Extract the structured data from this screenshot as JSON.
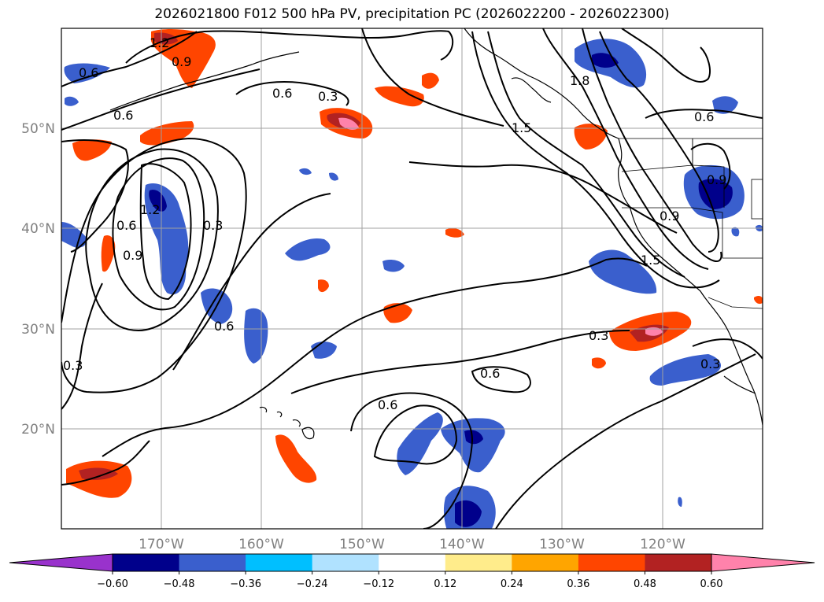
{
  "title": "2026021800 F012 500 hPa PV, precipitation PC (2026022200 - 2026022300)",
  "map": {
    "lon_range": [
      -180,
      -110
    ],
    "lat_range": [
      10,
      60
    ],
    "lon_labels": [
      "170°W",
      "160°W",
      "150°W",
      "140°W",
      "130°W",
      "120°W"
    ],
    "lat_labels": [
      "50°N",
      "40°N",
      "30°N",
      "20°N"
    ],
    "gridlines": true,
    "pv_contour_levels": [
      "0.3",
      "0.6",
      "0.9",
      "1.2",
      "1.5"
    ],
    "contour_labels_shown": [
      "1.2",
      "0.9",
      "0.6",
      "0.6",
      "0.3",
      "0.6",
      "1.5",
      "0.6",
      "1.2",
      "0.6",
      "0.9",
      "0.3",
      "0.6",
      "0.3",
      "0.9",
      "0.9",
      "1.5",
      "0.3",
      "0.3",
      "0.6",
      "0.6",
      "1.8"
    ]
  },
  "colorbar": {
    "ticks": [
      "−0.60",
      "−0.48",
      "−0.36",
      "−0.24",
      "−0.12",
      "0.12",
      "0.24",
      "0.36",
      "0.48",
      "0.60"
    ],
    "colors": [
      "#9932cc",
      "#00008b",
      "#3a5fcd",
      "#00bfff",
      "#b0e2ff",
      "#ffffff",
      "#ffec8b",
      "#ffa500",
      "#ff4500",
      "#b22222",
      "#ff82ab"
    ],
    "extend": "both"
  }
}
